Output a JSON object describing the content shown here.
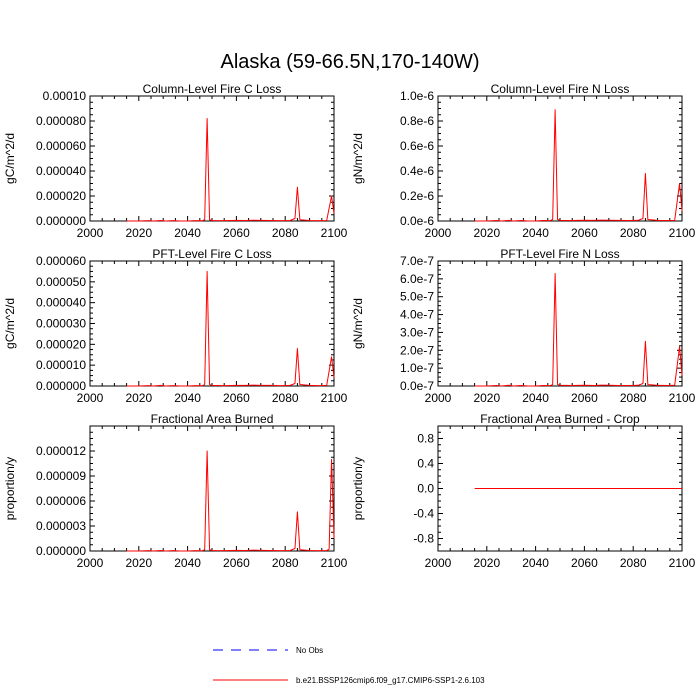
{
  "figure_title": "Alaska (59-66.5N,170-140W)",
  "colors": {
    "model": "#ff0000",
    "obs": "#0000ff",
    "axis": "#000000"
  },
  "legend": {
    "obs_label": "No Obs",
    "model_label": "b.e21.BSSP126cmip6.f09_g17.CMIP6-SSP1-2.6.103"
  },
  "chart_data": [
    {
      "type": "line",
      "title": "Column-Level Fire C Loss",
      "ylabel": "gC/m^2/d",
      "xlabel": "",
      "xlim": [
        2000,
        2100
      ],
      "ylim": [
        0,
        0.0001
      ],
      "xticks": [
        2000,
        2020,
        2040,
        2060,
        2080,
        2100
      ],
      "xtick_labels": [
        "2000",
        "2020",
        "2040",
        "2060",
        "2080",
        "2100"
      ],
      "yticks": [
        0,
        2e-05,
        4e-05,
        6e-05,
        8e-05,
        0.0001
      ],
      "ytick_labels": [
        "0.000000",
        "0.000020",
        "0.000040",
        "0.000060",
        "0.000080",
        "0.00010"
      ],
      "series": [
        {
          "name": "b.e21.BSSP126cmip6.f09_g17.CMIP6-SSP1-2.6.103",
          "x": [
            2015,
            2020,
            2024,
            2026,
            2029,
            2031,
            2034,
            2037,
            2040,
            2043,
            2046,
            2047,
            2048,
            2049,
            2050,
            2055,
            2060,
            2064,
            2067,
            2070,
            2074,
            2078,
            2082,
            2084,
            2085,
            2086,
            2090,
            2094,
            2097,
            2099,
            2100
          ],
          "y": [
            0,
            0,
            3e-07,
            0,
            4e-07,
            0,
            3e-07,
            0,
            0,
            3e-07,
            2e-07,
            1e-06,
            8.2e-05,
            1e-06,
            4e-07,
            3e-07,
            5e-07,
            4e-07,
            6e-07,
            5e-07,
            4e-07,
            3e-07,
            4e-07,
            2e-06,
            2.7e-05,
            1e-06,
            4e-07,
            3e-07,
            4e-07,
            2e-05,
            6e-06
          ]
        }
      ]
    },
    {
      "type": "line",
      "title": "Column-Level Fire N Loss",
      "ylabel": "gN/m^2/d",
      "xlabel": "",
      "xlim": [
        2000,
        2100
      ],
      "ylim": [
        0,
        1e-06
      ],
      "xticks": [
        2000,
        2020,
        2040,
        2060,
        2080,
        2100
      ],
      "xtick_labels": [
        "2000",
        "2020",
        "2040",
        "2060",
        "2080",
        "2100"
      ],
      "yticks": [
        0,
        2e-07,
        4e-07,
        6e-07,
        8e-07,
        1e-06
      ],
      "ytick_labels": [
        "0.0e-6",
        "0.2e-6",
        "0.4e-6",
        "0.6e-6",
        "0.8e-6",
        "1.0e-6"
      ],
      "series": [
        {
          "name": "b.e21.BSSP126cmip6.f09_g17.CMIP6-SSP1-2.6.103",
          "x": [
            2015,
            2020,
            2024,
            2026,
            2029,
            2031,
            2034,
            2037,
            2040,
            2043,
            2046,
            2047,
            2048,
            2049,
            2050,
            2055,
            2060,
            2064,
            2067,
            2070,
            2074,
            2078,
            2082,
            2084,
            2085,
            2086,
            2090,
            2094,
            2097,
            2099,
            2100
          ],
          "y": [
            0,
            0,
            4e-09,
            0,
            5e-09,
            0,
            4e-09,
            0,
            0,
            4e-09,
            3e-09,
            1.2e-08,
            8.9e-07,
            1.2e-08,
            5e-09,
            4e-09,
            6e-09,
            5e-09,
            7e-09,
            6e-09,
            5e-09,
            4e-09,
            5e-09,
            2e-08,
            3.8e-07,
            1.2e-08,
            5e-09,
            4e-09,
            5e-09,
            3e-07,
            8e-08
          ]
        }
      ]
    },
    {
      "type": "line",
      "title": "PFT-Level Fire C Loss",
      "ylabel": "gC/m^2/d",
      "xlabel": "",
      "xlim": [
        2000,
        2100
      ],
      "ylim": [
        0,
        6e-05
      ],
      "xticks": [
        2000,
        2020,
        2040,
        2060,
        2080,
        2100
      ],
      "xtick_labels": [
        "2000",
        "2020",
        "2040",
        "2060",
        "2080",
        "2100"
      ],
      "yticks": [
        0,
        1e-05,
        2e-05,
        3e-05,
        4e-05,
        5e-05,
        6e-05
      ],
      "ytick_labels": [
        "0.000000",
        "0.000010",
        "0.000020",
        "0.000030",
        "0.000040",
        "0.000050",
        "0.000060"
      ],
      "series": [
        {
          "name": "b.e21.BSSP126cmip6.f09_g17.CMIP6-SSP1-2.6.103",
          "x": [
            2015,
            2020,
            2024,
            2026,
            2029,
            2031,
            2034,
            2037,
            2040,
            2043,
            2046,
            2047,
            2048,
            2049,
            2050,
            2055,
            2060,
            2064,
            2067,
            2070,
            2074,
            2078,
            2082,
            2084,
            2085,
            2086,
            2090,
            2094,
            2097,
            2099,
            2100
          ],
          "y": [
            0,
            0,
            2e-07,
            0,
            3e-07,
            0,
            2e-07,
            0,
            0,
            2e-07,
            1e-07,
            7e-07,
            5.5e-05,
            7e-07,
            3e-07,
            2e-07,
            3e-07,
            3e-07,
            4e-07,
            3e-07,
            3e-07,
            2e-07,
            3e-07,
            1.2e-06,
            1.8e-05,
            7e-07,
            3e-07,
            2e-07,
            3e-07,
            1.4e-05,
            4e-06
          ]
        }
      ]
    },
    {
      "type": "line",
      "title": "PFT-Level Fire N Loss",
      "ylabel": "gN/m^2/d",
      "xlabel": "",
      "xlim": [
        2000,
        2100
      ],
      "ylim": [
        0,
        7e-07
      ],
      "xticks": [
        2000,
        2020,
        2040,
        2060,
        2080,
        2100
      ],
      "xtick_labels": [
        "2000",
        "2020",
        "2040",
        "2060",
        "2080",
        "2100"
      ],
      "yticks": [
        0,
        1e-07,
        2e-07,
        3e-07,
        4e-07,
        5e-07,
        6e-07,
        7e-07
      ],
      "ytick_labels": [
        "0.0e-7",
        "1.0e-7",
        "2.0e-7",
        "3.0e-7",
        "4.0e-7",
        "5.0e-7",
        "6.0e-7",
        "7.0e-7"
      ],
      "series": [
        {
          "name": "b.e21.BSSP126cmip6.f09_g17.CMIP6-SSP1-2.6.103",
          "x": [
            2015,
            2020,
            2024,
            2026,
            2029,
            2031,
            2034,
            2037,
            2040,
            2043,
            2046,
            2047,
            2048,
            2049,
            2050,
            2055,
            2060,
            2064,
            2067,
            2070,
            2074,
            2078,
            2082,
            2084,
            2085,
            2086,
            2090,
            2094,
            2097,
            2099,
            2100
          ],
          "y": [
            0,
            0,
            3e-09,
            0,
            4e-09,
            0,
            3e-09,
            0,
            0,
            3e-09,
            2e-09,
            8e-09,
            6.3e-07,
            8e-09,
            4e-09,
            3e-09,
            4e-09,
            3e-09,
            5e-09,
            4e-09,
            3e-09,
            3e-09,
            4e-09,
            1.4e-08,
            2.5e-07,
            8e-09,
            4e-09,
            3e-09,
            4e-09,
            2.2e-07,
            6e-08
          ]
        }
      ]
    },
    {
      "type": "line",
      "title": "Fractional Area Burned",
      "ylabel": "proportion/y",
      "xlabel": "",
      "xlim": [
        2000,
        2100
      ],
      "ylim": [
        0,
        1.5e-05
      ],
      "xticks": [
        2000,
        2020,
        2040,
        2060,
        2080,
        2100
      ],
      "xtick_labels": [
        "2000",
        "2020",
        "2040",
        "2060",
        "2080",
        "2100"
      ],
      "yticks": [
        0,
        3e-06,
        6e-06,
        9e-06,
        1.2e-05
      ],
      "ytick_labels": [
        "0.000000",
        "0.000003",
        "0.000006",
        "0.000009",
        "0.000012"
      ],
      "series": [
        {
          "name": "b.e21.BSSP126cmip6.f09_g17.CMIP6-SSP1-2.6.103",
          "x": [
            2015,
            2020,
            2024,
            2026,
            2029,
            2031,
            2034,
            2037,
            2040,
            2043,
            2046,
            2047,
            2048,
            2049,
            2050,
            2055,
            2060,
            2064,
            2067,
            2070,
            2074,
            2078,
            2082,
            2084,
            2085,
            2086,
            2090,
            2094,
            2097,
            2098,
            2099,
            2100
          ],
          "y": [
            0,
            0,
            5e-08,
            0,
            6e-08,
            0,
            5e-08,
            0,
            0,
            5e-08,
            3e-08,
            1.5e-07,
            1.2e-05,
            1.5e-07,
            6e-08,
            5e-08,
            8e-08,
            6e-08,
            1e-07,
            8e-08,
            6e-08,
            5e-08,
            6e-08,
            3e-07,
            4.7e-06,
            1.5e-07,
            6e-08,
            5e-08,
            6e-08,
            2e-07,
            1.1e-05,
            1.5e-06
          ]
        }
      ]
    },
    {
      "type": "line",
      "title": "Fractional Area Burned - Crop",
      "ylabel": "proportion/y",
      "xlabel": "",
      "xlim": [
        2000,
        2100
      ],
      "ylim": [
        -1,
        1
      ],
      "xticks": [
        2000,
        2020,
        2040,
        2060,
        2080,
        2100
      ],
      "xtick_labels": [
        "2000",
        "2020",
        "2040",
        "2060",
        "2080",
        "2100"
      ],
      "yticks": [
        -0.8,
        -0.4,
        0,
        0.4,
        0.8
      ],
      "ytick_labels": [
        "-0.8",
        "-0.4",
        "0.0",
        "0.4",
        "0.8"
      ],
      "series": [
        {
          "name": "b.e21.BSSP126cmip6.f09_g17.CMIP6-SSP1-2.6.103",
          "x": [
            2015,
            2100
          ],
          "y": [
            0,
            0
          ]
        }
      ]
    }
  ]
}
